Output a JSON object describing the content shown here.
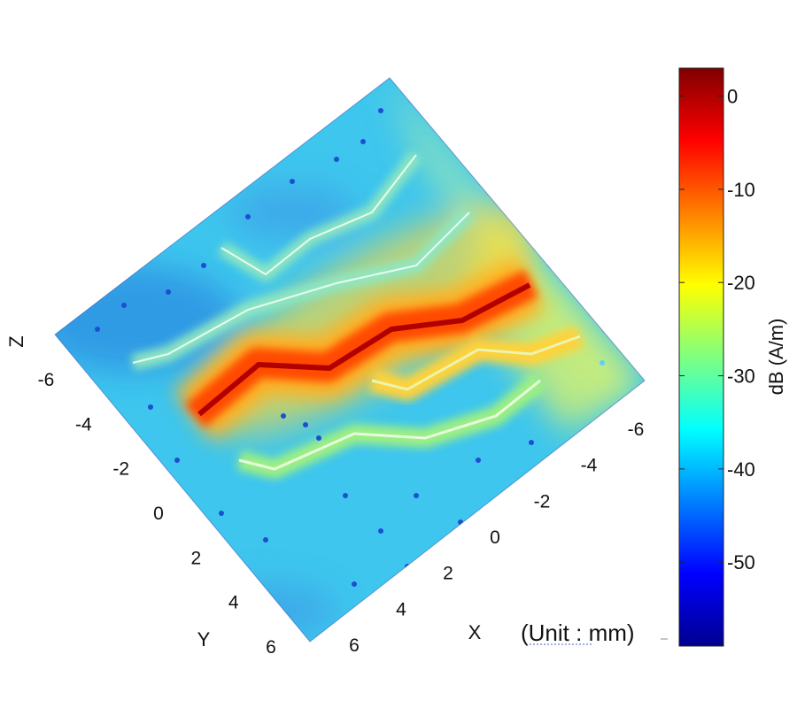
{
  "chart_data": {
    "type": "heatmap",
    "title": "",
    "description_units": "dB (A/m)",
    "axes": {
      "x": {
        "label": "X",
        "ticks": [
          6,
          4,
          2,
          0,
          -2,
          -4,
          -6
        ]
      },
      "y": {
        "label": "Y",
        "ticks": [
          -6,
          -4,
          -2,
          0,
          2,
          4,
          6
        ]
      },
      "z": {
        "label": "Z"
      }
    },
    "colorbar": {
      "label": "dB (A/m)",
      "ticks": [
        0,
        -10,
        -20,
        -30,
        -40,
        -50
      ],
      "range": [
        -59,
        3
      ]
    },
    "unit_note": "(Unit : mm)",
    "traces": [
      {
        "name": "",
        "peak_db": 2
      },
      {
        "name": "",
        "peak_db": -20
      },
      {
        "name": "",
        "peak_db": -22
      },
      {
        "name": "",
        "peak_db": -25
      },
      {
        "name": "",
        "peak_db": -28
      }
    ],
    "background_db": -38
  }
}
